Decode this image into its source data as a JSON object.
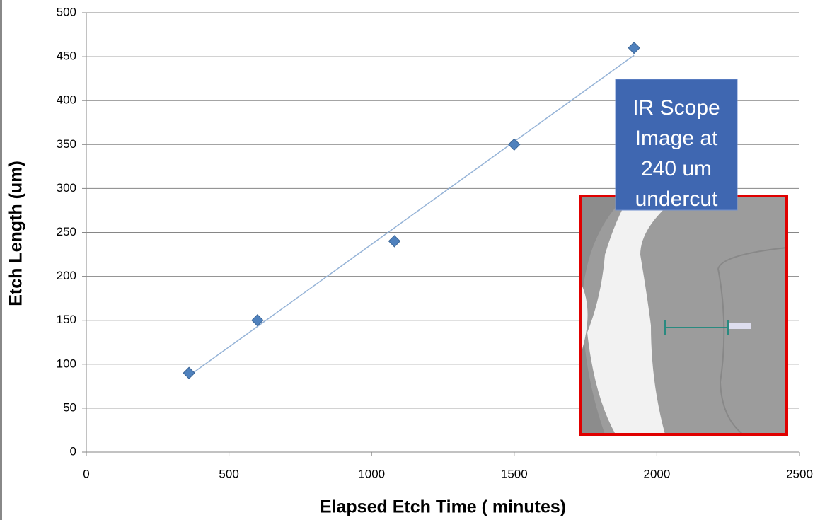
{
  "chart_data": {
    "type": "scatter",
    "xlabel": "Elapsed Etch Time ( minutes)",
    "ylabel": "Etch Length (um)",
    "x": [
      360,
      600,
      1080,
      1500,
      1920
    ],
    "values": [
      90,
      150,
      240,
      350,
      460
    ],
    "color": "#4f81bd",
    "trendline": true,
    "trendline_color": "#95b3d7",
    "xlim": [
      0,
      2500
    ],
    "xticks": [
      0,
      500,
      1000,
      1500,
      2000,
      2500
    ],
    "ylim": [
      0,
      500
    ],
    "yticks": [
      0,
      50,
      100,
      150,
      200,
      250,
      300,
      350,
      400,
      450,
      500
    ],
    "grid": true,
    "annotation_lines": [
      "IR Scope",
      "Image at",
      "240 um",
      "undercut"
    ]
  }
}
